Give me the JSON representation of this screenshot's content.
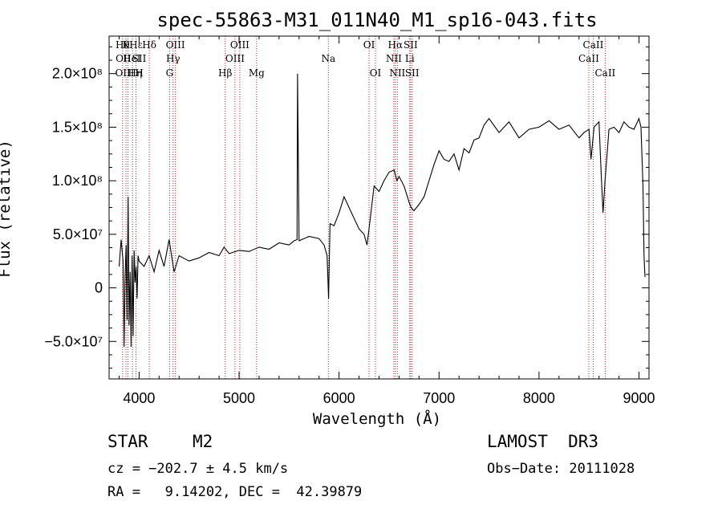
{
  "chart_data": {
    "type": "line",
    "title": "spec-55863-M31_011N40_M1_sp16-043.fits",
    "xlabel": "Wavelength (Å)",
    "ylabel": "Flux (relative)",
    "xlim": [
      3700,
      9100
    ],
    "ylim": [
      -85000000,
      235000000
    ],
    "x_ticks": [
      4000,
      5000,
      6000,
      7000,
      8000,
      9000
    ],
    "x_tick_labels": [
      "4000",
      "5000",
      "6000",
      "7000",
      "8000",
      "9000"
    ],
    "y_ticks": [
      -50000000,
      0,
      50000000,
      100000000,
      150000000,
      200000000
    ],
    "y_tick_labels": [
      "−5.0×10⁷",
      "0",
      "5.0×10⁷",
      "1.0×10⁸",
      "1.5×10⁸",
      "2.0×10⁸"
    ],
    "series": [
      {
        "name": "flux",
        "x": [
          3800,
          3820,
          3840,
          3850,
          3860,
          3870,
          3880,
          3890,
          3900,
          3910,
          3920,
          3930,
          3940,
          3950,
          3960,
          3970,
          3980,
          3990,
          4000,
          4050,
          4100,
          4150,
          4200,
          4250,
          4300,
          4350,
          4400,
          4500,
          4600,
          4700,
          4800,
          4850,
          4900,
          5000,
          5100,
          5200,
          5300,
          5400,
          5500,
          5550,
          5580,
          5585,
          5600,
          5700,
          5800,
          5850,
          5880,
          5890,
          5895,
          5900,
          5910,
          5950,
          6000,
          6050,
          6100,
          6150,
          6200,
          6250,
          6280,
          6300,
          6350,
          6400,
          6450,
          6500,
          6550,
          6580,
          6600,
          6650,
          6700,
          6720,
          6750,
          6800,
          6850,
          6900,
          6950,
          7000,
          7050,
          7100,
          7150,
          7200,
          7250,
          7300,
          7350,
          7400,
          7450,
          7500,
          7600,
          7700,
          7800,
          7900,
          8000,
          8100,
          8200,
          8300,
          8400,
          8450,
          8500,
          8520,
          8550,
          8600,
          8620,
          8640,
          8660,
          8700,
          8750,
          8800,
          8850,
          8900,
          8950,
          9000,
          9020,
          9040,
          9050,
          9060
        ],
        "y": [
          20000000,
          45000000,
          25000000,
          -55000000,
          10000000,
          40000000,
          -30000000,
          85000000,
          -35000000,
          15000000,
          -55000000,
          30000000,
          -45000000,
          35000000,
          5000000,
          20000000,
          -10000000,
          30000000,
          25000000,
          20000000,
          30000000,
          15000000,
          35000000,
          20000000,
          45000000,
          15000000,
          30000000,
          25000000,
          28000000,
          33000000,
          30000000,
          38000000,
          32000000,
          35000000,
          34000000,
          38000000,
          36000000,
          42000000,
          40000000,
          44000000,
          45000000,
          200000000,
          44000000,
          48000000,
          46000000,
          40000000,
          30000000,
          5000000,
          -10000000,
          15000000,
          60000000,
          58000000,
          70000000,
          85000000,
          75000000,
          65000000,
          55000000,
          50000000,
          40000000,
          55000000,
          95000000,
          90000000,
          100000000,
          108000000,
          110000000,
          100000000,
          104000000,
          95000000,
          80000000,
          75000000,
          72000000,
          78000000,
          85000000,
          100000000,
          115000000,
          128000000,
          120000000,
          118000000,
          125000000,
          110000000,
          130000000,
          126000000,
          138000000,
          140000000,
          152000000,
          158000000,
          145000000,
          155000000,
          140000000,
          148000000,
          150000000,
          156000000,
          148000000,
          152000000,
          140000000,
          145000000,
          148000000,
          120000000,
          150000000,
          155000000,
          110000000,
          70000000,
          100000000,
          148000000,
          150000000,
          145000000,
          155000000,
          150000000,
          148000000,
          158000000,
          150000000,
          95000000,
          30000000,
          10000000
        ],
        "color": "#000000"
      }
    ],
    "line_markers": [
      {
        "x": 3835,
        "label": "Hθ",
        "row": 0
      },
      {
        "x": 3869,
        "label": "K",
        "row": 0
      },
      {
        "x": 3889,
        "label": "",
        "row": 0
      },
      {
        "x": 3934,
        "label": "",
        "row": 0
      },
      {
        "x": 3969,
        "label": "Hε",
        "row": 0
      },
      {
        "x": 4102,
        "label": "Hδ",
        "row": 0
      },
      {
        "x": 4363,
        "label": "OIII",
        "row": 0
      },
      {
        "x": 4340,
        "label": "Hγ",
        "row": 1
      },
      {
        "x": 4305,
        "label": "G",
        "row": 2
      },
      {
        "x": 4861,
        "label": "Hβ",
        "row": 2
      },
      {
        "x": 4959,
        "label": "OIII",
        "row": 1
      },
      {
        "x": 5007,
        "label": "OIII",
        "row": 0
      },
      {
        "x": 5175,
        "label": "Mg",
        "row": 2
      },
      {
        "x": 5893,
        "label": "Na",
        "row": 1
      },
      {
        "x": 6300,
        "label": "OI",
        "row": 0
      },
      {
        "x": 6364,
        "label": "OI",
        "row": 2
      },
      {
        "x": 6548,
        "label": "NII",
        "row": 1
      },
      {
        "x": 6563,
        "label": "Hα",
        "row": 0
      },
      {
        "x": 6583,
        "label": "NII",
        "row": 2
      },
      {
        "x": 6707,
        "label": "Li",
        "row": 1
      },
      {
        "x": 6716,
        "label": "SII",
        "row": 0
      },
      {
        "x": 6731,
        "label": "SII",
        "row": 2
      },
      {
        "x": 8498,
        "label": "CaII",
        "row": 1
      },
      {
        "x": 8542,
        "label": "CaII",
        "row": 0
      },
      {
        "x": 8662,
        "label": "CaII",
        "row": 2
      }
    ],
    "extra_labels": [
      {
        "x": 3760,
        "label": "OIII",
        "row": 2
      },
      {
        "x": 3765,
        "label": "OII",
        "row": 1
      },
      {
        "x": 3838,
        "label": "HeI",
        "row": 1
      },
      {
        "x": 3889,
        "label": "Hη",
        "row": 2
      },
      {
        "x": 3930,
        "label": "SII",
        "row": 1
      },
      {
        "x": 3960,
        "label": "H",
        "row": 2
      }
    ]
  },
  "info": {
    "object_class": "STAR",
    "subclass": "M2",
    "survey": "LAMOST  DR3",
    "redshift": "cz = −202.7 ± 4.5 km/s",
    "obs_date": "Obs−Date: 20111028",
    "coords": "RA =   9.14202, DEC =  42.39879"
  }
}
